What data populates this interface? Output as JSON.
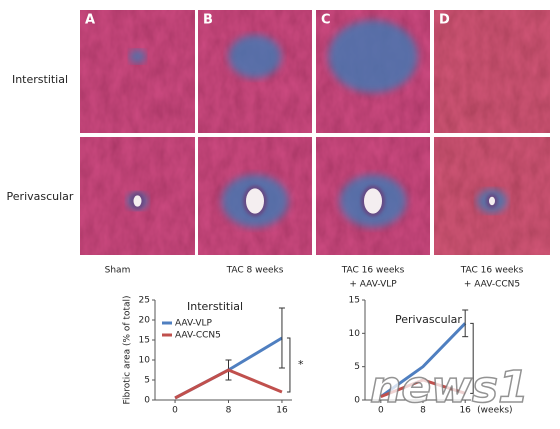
{
  "panels": {
    "letters": [
      "A",
      "B",
      "C",
      "D"
    ],
    "rows": [
      "Interstitial",
      "Perivascular"
    ],
    "columns": [
      [
        "Sham"
      ],
      [
        "TAC 8 weeks"
      ],
      [
        "TAC 16 weeks",
        "+ AAV-VLP"
      ],
      [
        "TAC 16 weeks",
        "+ AAV-CCN5"
      ]
    ]
  },
  "watermark": "news1",
  "chart_data": [
    {
      "type": "line",
      "title": "Interstitial",
      "ylabel": "Fibrotic area (% of total)",
      "annotation": "*",
      "x": [
        0,
        8,
        16
      ],
      "xlim": [
        -3,
        19
      ],
      "xticks": [
        0,
        8,
        16
      ],
      "ylim": [
        0,
        25
      ],
      "yticks": [
        0,
        5,
        10,
        15,
        20,
        25
      ],
      "series": [
        {
          "name": "AAV-VLP",
          "color": "#4f7fc0",
          "values": [
            0.5,
            7.5,
            15.5
          ],
          "errors": [
            null,
            2.5,
            7.5
          ]
        },
        {
          "name": "AAV-CCN5",
          "color": "#c0504d",
          "values": [
            0.5,
            7.5,
            2
          ],
          "errors": [
            null,
            null,
            null
          ]
        }
      ]
    },
    {
      "type": "line",
      "title": "Perivascular",
      "xlabel": "(weeks)",
      "x": [
        0,
        8,
        16
      ],
      "xlim": [
        -3,
        19
      ],
      "xticks": [
        0,
        8,
        16
      ],
      "ylim": [
        0,
        15
      ],
      "yticks": [
        0,
        5,
        10,
        15
      ],
      "series": [
        {
          "name": "AAV-VLP",
          "color": "#4f7fc0",
          "values": [
            0.5,
            5,
            11.5
          ],
          "errors": [
            null,
            null,
            2
          ]
        },
        {
          "name": "AAV-CCN5",
          "color": "#c0504d",
          "values": [
            0.5,
            3,
            1
          ],
          "errors": [
            null,
            null,
            null
          ]
        }
      ]
    }
  ]
}
